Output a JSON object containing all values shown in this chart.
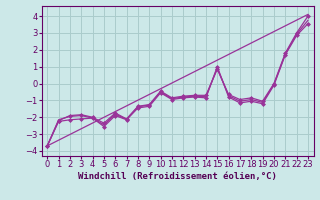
{
  "background_color": "#cce8e8",
  "grid_color": "#aacccc",
  "line_color": "#993399",
  "marker_color": "#993399",
  "xlabel": "Windchill (Refroidissement éolien,°C)",
  "xlabel_fontsize": 6.5,
  "tick_fontsize": 6.0,
  "xlim": [
    -0.5,
    23.5
  ],
  "ylim": [
    -4.3,
    4.6
  ],
  "yticks": [
    -4,
    -3,
    -2,
    -1,
    0,
    1,
    2,
    3,
    4
  ],
  "xticks": [
    0,
    1,
    2,
    3,
    4,
    5,
    6,
    7,
    8,
    9,
    10,
    11,
    12,
    13,
    14,
    15,
    16,
    17,
    18,
    19,
    20,
    21,
    22,
    23
  ],
  "line1_x": [
    0,
    1,
    2,
    3,
    4,
    5,
    6,
    7,
    8,
    9,
    10,
    11,
    12,
    13,
    14,
    15,
    16,
    17,
    18,
    19,
    20,
    21,
    22,
    23
  ],
  "line1_y": [
    -3.7,
    -2.2,
    -1.9,
    -1.85,
    -2.0,
    -2.35,
    -1.75,
    -2.1,
    -1.35,
    -1.25,
    -0.45,
    -0.85,
    -0.75,
    -0.7,
    -0.7,
    0.85,
    -0.65,
    -0.95,
    -0.85,
    -1.05,
    0.0,
    1.8,
    3.0,
    4.0
  ],
  "line2_x": [
    0,
    1,
    2,
    3,
    4,
    5,
    6,
    7,
    8,
    9,
    10,
    11,
    12,
    13,
    14,
    15,
    16,
    17,
    18,
    19,
    20,
    21,
    22,
    23
  ],
  "line2_y": [
    -3.7,
    -2.25,
    -2.15,
    -2.1,
    -2.05,
    -2.55,
    -1.9,
    -2.15,
    -1.45,
    -1.35,
    -0.55,
    -0.95,
    -0.85,
    -0.8,
    -0.85,
    1.0,
    -0.8,
    -1.15,
    -1.05,
    -1.2,
    -0.1,
    1.7,
    2.85,
    3.55
  ],
  "line3_x": [
    0,
    23
  ],
  "line3_y": [
    -3.7,
    4.1
  ],
  "line4_x": [
    0,
    1,
    2,
    3,
    4,
    5,
    6,
    7,
    8,
    9,
    10,
    11,
    12,
    13,
    14,
    15,
    16,
    17,
    18,
    19,
    20,
    21,
    22,
    23
  ],
  "line4_y": [
    -3.7,
    -2.15,
    -1.95,
    -1.9,
    -2.05,
    -2.45,
    -1.82,
    -2.12,
    -1.38,
    -1.28,
    -0.5,
    -0.9,
    -0.8,
    -0.75,
    -0.78,
    0.92,
    -0.72,
    -1.05,
    -0.95,
    -1.12,
    -0.05,
    1.75,
    2.92,
    3.75
  ]
}
